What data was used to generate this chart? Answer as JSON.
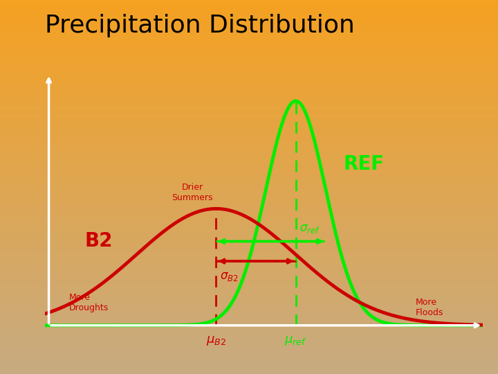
{
  "title": "Precipitation Distribution",
  "title_fontsize": 26,
  "bg_orange": [
    0.96,
    0.63,
    0.13
  ],
  "bg_tan": [
    0.78,
    0.67,
    0.51
  ],
  "ref_color": "#00EE00",
  "b2_color": "#CC0000",
  "axis_color": "#FFFFFF",
  "mu_ref": 0.58,
  "mu_b2": 0.38,
  "sigma_ref": 0.075,
  "sigma_b2": 0.2,
  "amp_ref": 1.0,
  "amp_b2": 0.52,
  "label_ref": "REF",
  "label_b2": "B2",
  "label_drier": "Drier\nSummers",
  "label_more_droughts": "More\nDroughts",
  "label_more_floods": "More\nFloods"
}
